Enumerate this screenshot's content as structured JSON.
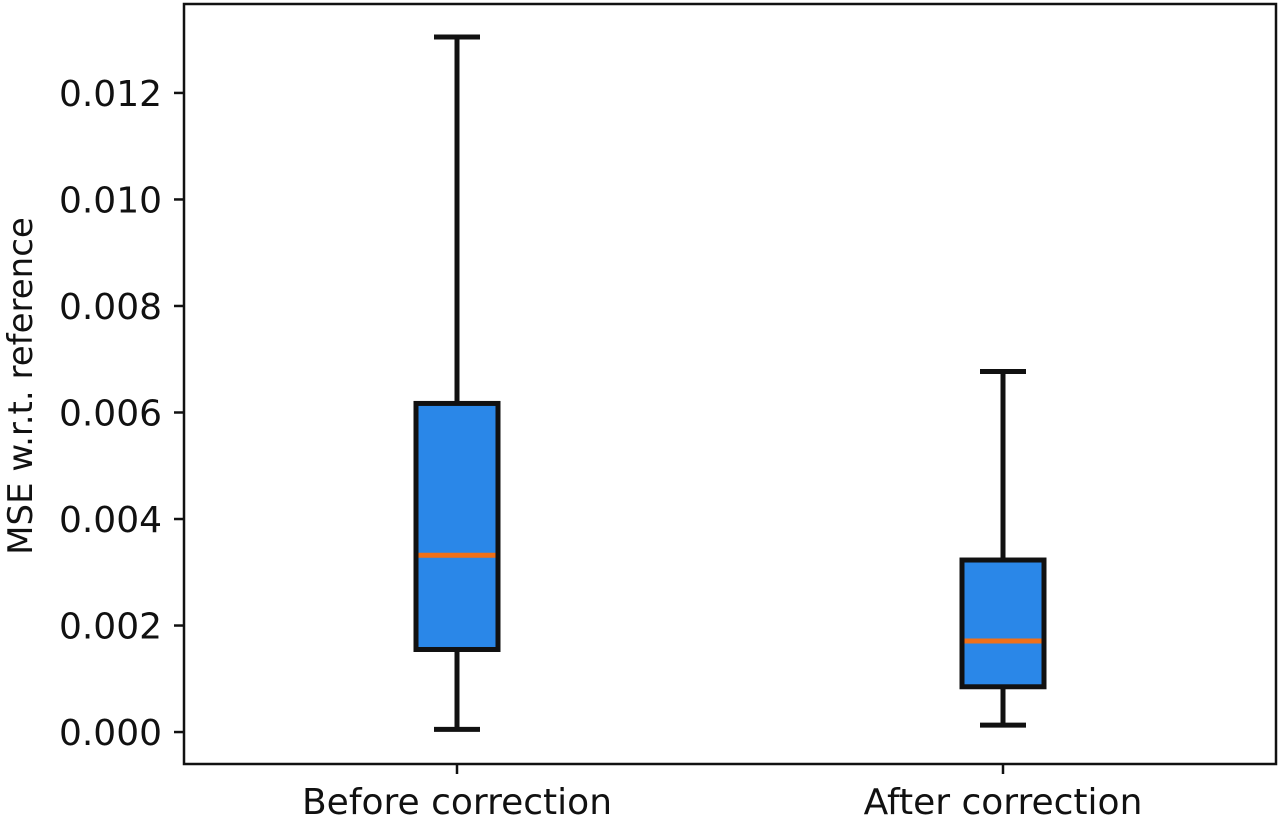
{
  "chart_data": {
    "type": "box",
    "title": "",
    "xlabel": "",
    "ylabel": "MSE w.r.t. reference",
    "ylim": [
      -0.0006,
      0.01367
    ],
    "yticks": [
      "0.000",
      "0.002",
      "0.004",
      "0.006",
      "0.008",
      "0.010",
      "0.012"
    ],
    "categories": [
      "Before correction",
      "After correction"
    ],
    "boxes": [
      {
        "category": "Before correction",
        "whisker_low": 5e-05,
        "q1": 0.00155,
        "median": 0.00332,
        "q3": 0.00617,
        "whisker_high": 0.01305
      },
      {
        "category": "After correction",
        "whisker_low": 0.00013,
        "q1": 0.00085,
        "median": 0.00171,
        "q3": 0.00323,
        "whisker_high": 0.00677
      }
    ],
    "grid": false,
    "colors": {
      "box_fill": "#2a87e8",
      "median": "#f07018",
      "outline": "#111111"
    }
  }
}
